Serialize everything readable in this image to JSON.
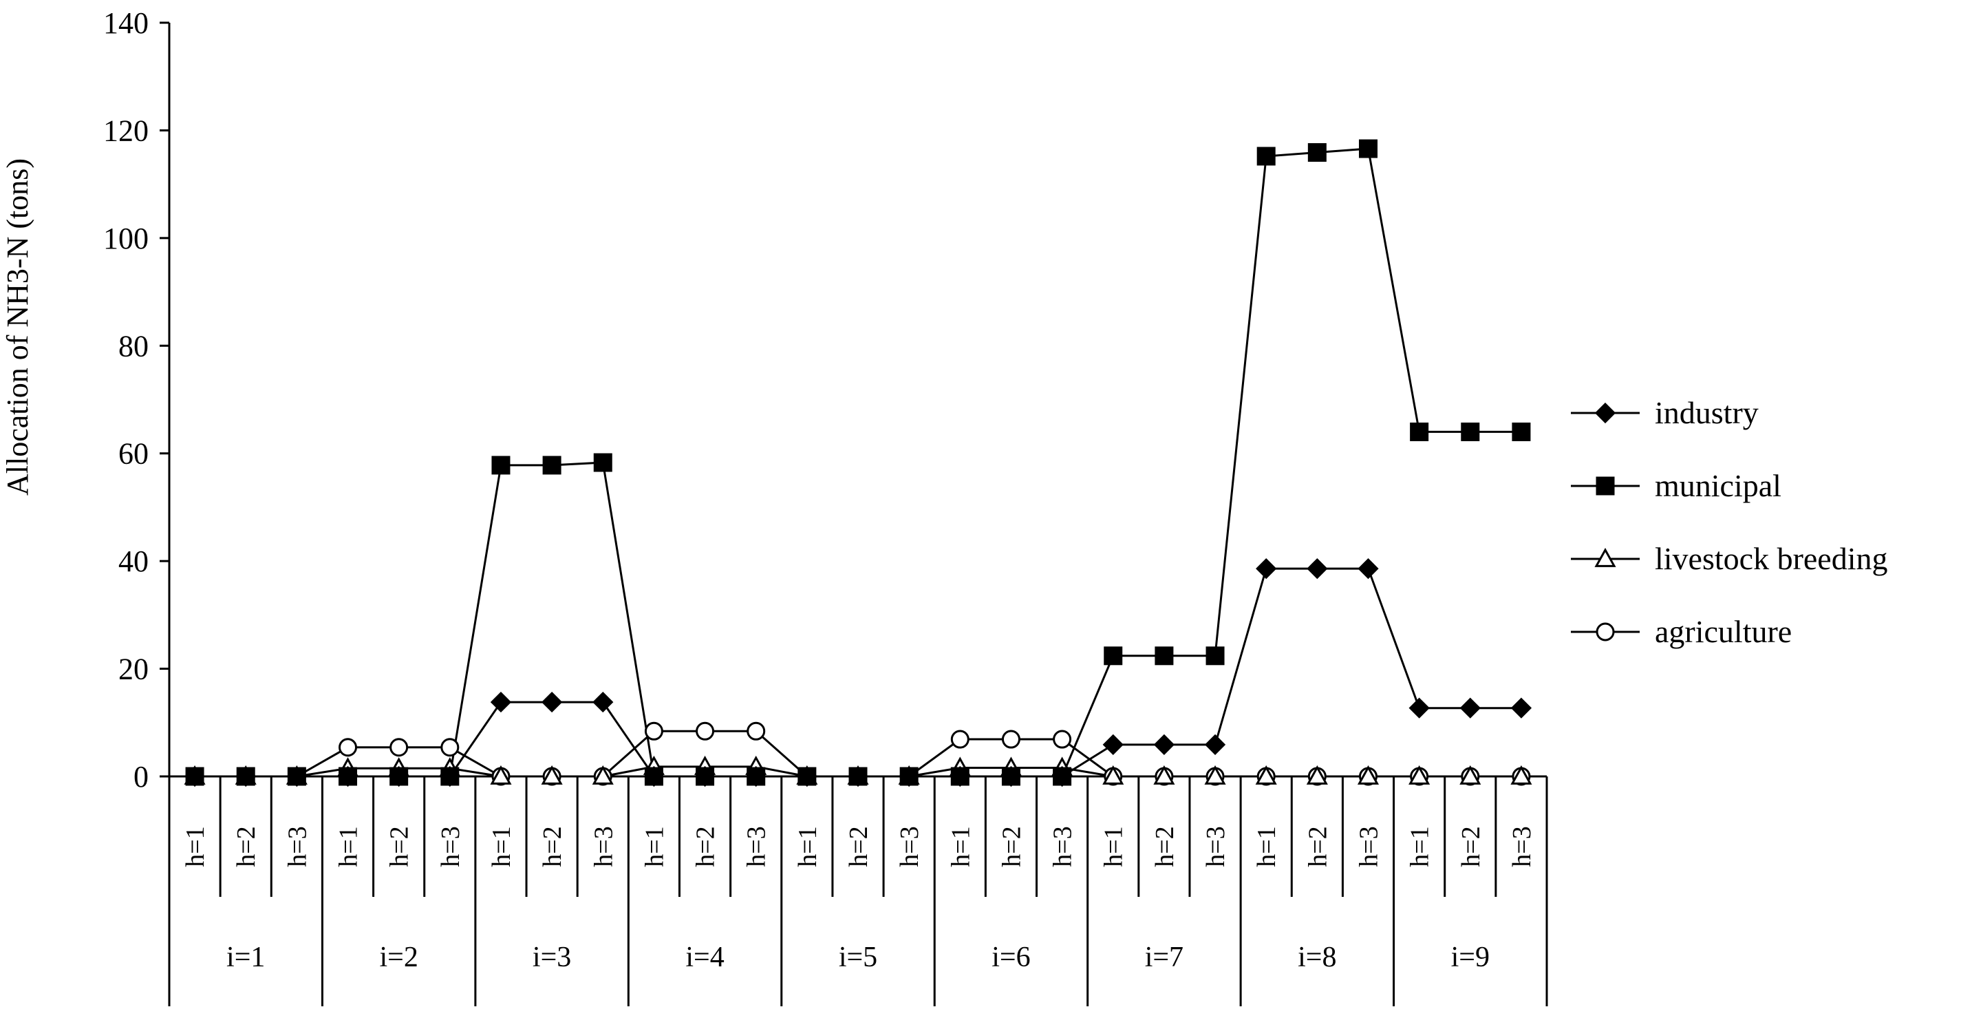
{
  "chart_data": {
    "type": "line",
    "title": "",
    "xlabel": "",
    "ylabel": "Allocation of NH3-N (tons)",
    "ylim": [
      0,
      140
    ],
    "yticks": [
      0,
      20,
      40,
      60,
      80,
      100,
      120,
      140
    ],
    "grid": false,
    "legend_position": "right",
    "groups": [
      "i=1",
      "i=2",
      "i=3",
      "i=4",
      "i=5",
      "i=6",
      "i=7",
      "i=8",
      "i=9"
    ],
    "subcategories": [
      "h=1",
      "h=2",
      "h=3"
    ],
    "series": [
      {
        "name": "industry",
        "marker": "diamond-filled",
        "values": [
          0,
          0,
          0,
          0,
          0,
          0,
          13.8,
          13.8,
          13.8,
          0,
          0,
          0,
          0,
          0,
          0,
          0,
          0,
          0,
          5.9,
          5.9,
          5.9,
          38.6,
          38.6,
          38.6,
          12.7,
          12.7,
          12.7
        ]
      },
      {
        "name": "municipal",
        "marker": "square-filled",
        "values": [
          0,
          0,
          0,
          0,
          0,
          0,
          57.8,
          57.8,
          58.3,
          0,
          0,
          0,
          0,
          0,
          0,
          0,
          0,
          0,
          22.4,
          22.4,
          22.4,
          115.2,
          115.9,
          116.6,
          64.0,
          64.0,
          64.0
        ]
      },
      {
        "name": "livestock breeding",
        "marker": "triangle-open",
        "values": [
          0,
          0,
          0,
          1.5,
          1.5,
          1.5,
          0,
          0,
          0,
          1.8,
          1.8,
          1.8,
          0,
          0,
          0,
          1.6,
          1.6,
          1.6,
          0,
          0,
          0,
          0,
          0,
          0,
          0,
          0,
          0
        ]
      },
      {
        "name": "agriculture",
        "marker": "circle-open",
        "values": [
          0,
          0,
          0,
          5.4,
          5.4,
          5.4,
          0,
          0,
          0,
          8.4,
          8.4,
          8.4,
          0,
          0,
          0,
          6.9,
          6.9,
          6.9,
          0,
          0,
          0,
          0,
          0,
          0,
          0,
          0,
          0
        ]
      }
    ]
  },
  "colors": {
    "line": "#000000",
    "marker_fill": "#000000",
    "open_marker_fill": "#ffffff"
  }
}
